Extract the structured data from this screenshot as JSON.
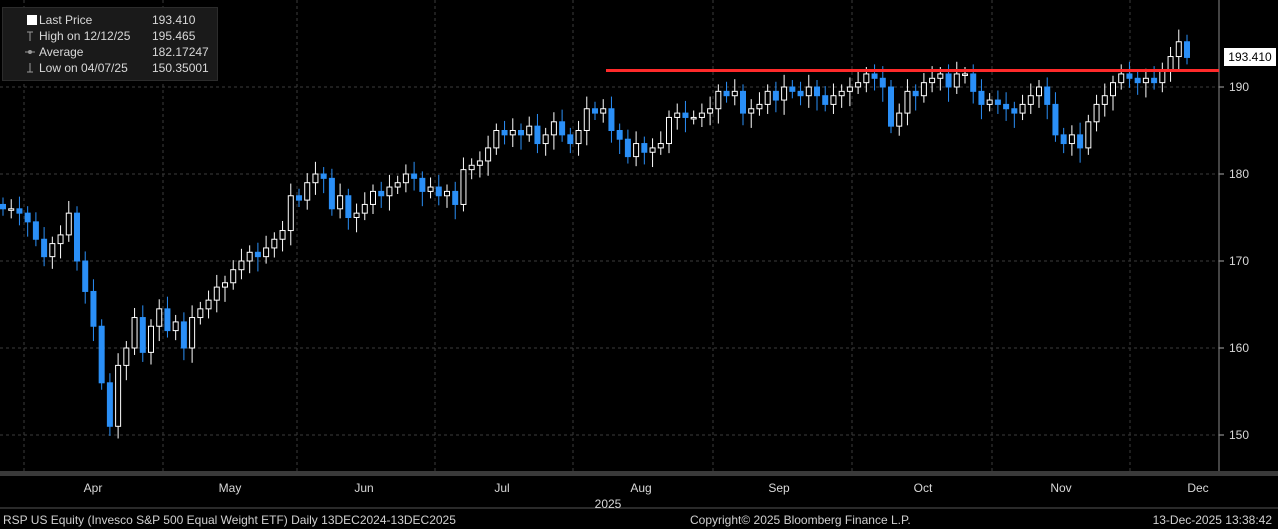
{
  "legend": {
    "items": [
      {
        "label": "Last Price",
        "value": "193.410",
        "icon": "white-square-icon"
      },
      {
        "label": "High on 12/12/25",
        "value": "195.465",
        "icon": "high-marker-icon"
      },
      {
        "label": "Average",
        "value": "182.17247",
        "icon": "average-line-icon"
      },
      {
        "label": "Low on 04/07/25",
        "value": "150.35001",
        "icon": "low-marker-icon"
      }
    ]
  },
  "last_price_label": "193.410",
  "footer": {
    "left": "RSP US Equity (Invesco S&P 500 Equal Weight ETF) Daily 13DEC2024-13DEC2025",
    "center": "Copyright© 2025 Bloomberg Finance L.P.",
    "right": "13-Dec-2025 13:38:42"
  },
  "colors": {
    "up": "#ffffff",
    "down": "#2a8ff7",
    "resistance": "#ff2a2a",
    "grid": "#3b3b3b"
  },
  "chart_data": {
    "type": "candlestick",
    "year_label": "2025",
    "ylim": [
      145,
      199
    ],
    "y_ticks": [
      150,
      160,
      170,
      180,
      190
    ],
    "x_tick_labels": [
      "Apr",
      "May",
      "Jun",
      "Jul",
      "Aug",
      "Sep",
      "Oct",
      "Nov",
      "Dec"
    ],
    "resistance_level": 191.9,
    "series": [
      {
        "name": "RSP",
        "closes": [
          176,
          176,
          175.5,
          174.5,
          172.5,
          170.5,
          172,
          173,
          175.5,
          170,
          166.5,
          162.5,
          156,
          151,
          158,
          160,
          163.5,
          159.5,
          162.5,
          164.5,
          162,
          163,
          160,
          163.5,
          164.5,
          165.5,
          167,
          167.5,
          169,
          170,
          171,
          170.5,
          171.5,
          172.5,
          173.5,
          177.5,
          177,
          179,
          180,
          179.5,
          176,
          177.5,
          175,
          175.5,
          176.5,
          178,
          177.5,
          178.5,
          179,
          180,
          179.5,
          178,
          178.5,
          177.5,
          178,
          176.5,
          180.5,
          181,
          181.5,
          183,
          185,
          184.5,
          185,
          184.5,
          185.5,
          183.5,
          184.5,
          186,
          184.5,
          183.5,
          185,
          187.5,
          187,
          187.5,
          185,
          184,
          182,
          183.5,
          182.5,
          183,
          183.5,
          186.5,
          187,
          186.5,
          186.5,
          187,
          187.5,
          189.5,
          189,
          189.5,
          187,
          187.5,
          188,
          189.5,
          188.5,
          190,
          189.5,
          189,
          190,
          189,
          188,
          189,
          189.5,
          190,
          190.5,
          191.5,
          191,
          190,
          185.5,
          187,
          189.5,
          189,
          190.5,
          191,
          191.5,
          190,
          191.5,
          191.5,
          189.5,
          188,
          188.5,
          188,
          187.5,
          187,
          188,
          189,
          190,
          188,
          184.5,
          183.5,
          184.5,
          183,
          186,
          188,
          189,
          190.5,
          191.5,
          191,
          190.5,
          191,
          190.5,
          192,
          193.5,
          195.2,
          193.4
        ]
      }
    ]
  }
}
